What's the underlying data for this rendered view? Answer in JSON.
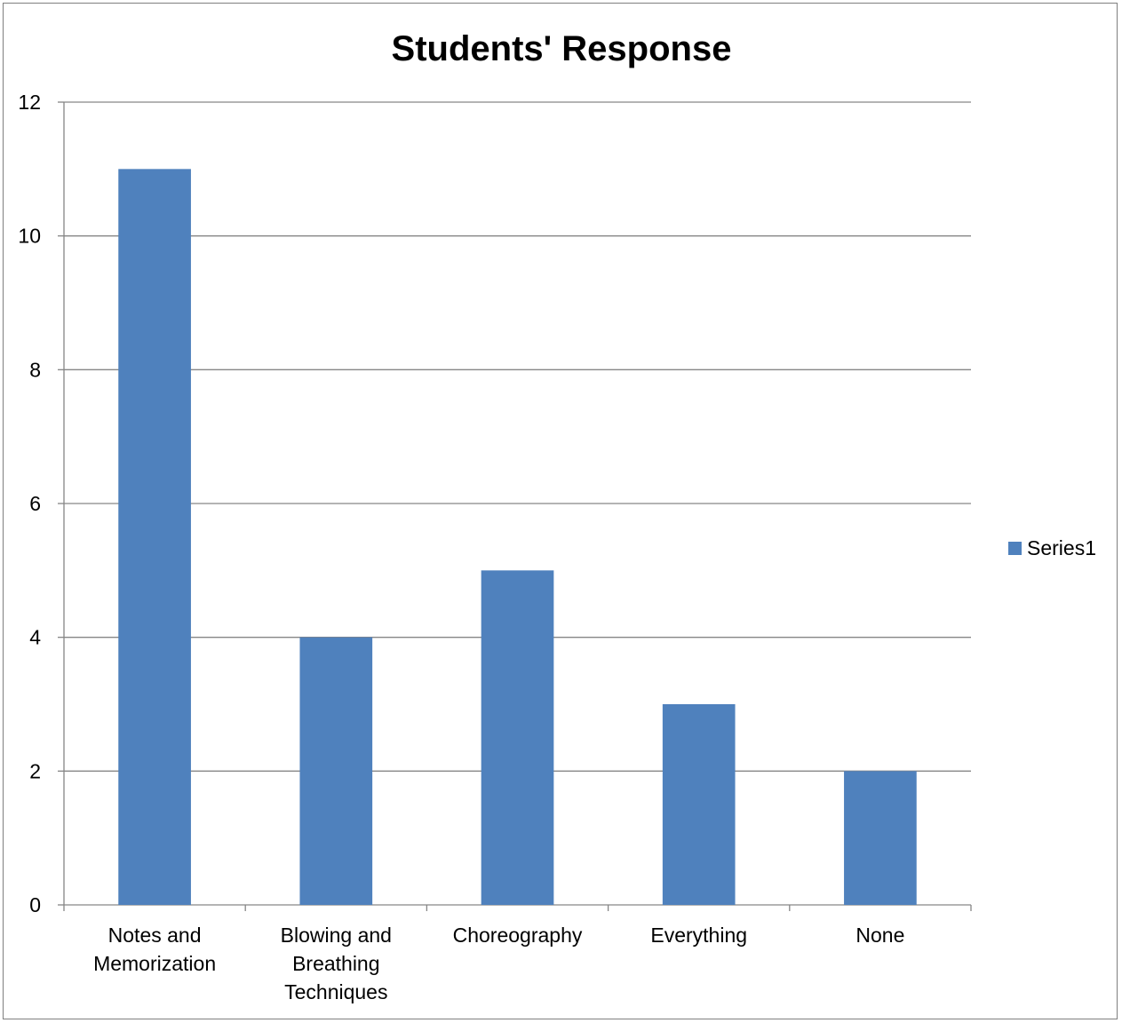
{
  "chart_data": {
    "type": "bar",
    "title": "Students' Response",
    "xlabel": "",
    "ylabel": "",
    "categories": [
      "Notes and Memorization",
      "Blowing and Breathing Techniques",
      "Choreography",
      "Everything",
      "None"
    ],
    "category_label_lines": [
      [
        "Notes and",
        "Memorization"
      ],
      [
        "Blowing and",
        "Breathing",
        "Techniques"
      ],
      [
        "Choreography"
      ],
      [
        "Everything"
      ],
      [
        "None"
      ]
    ],
    "series": [
      {
        "name": "Series1",
        "values": [
          11,
          4,
          5,
          3,
          2
        ],
        "color": "#4f81bd"
      }
    ],
    "ylim": [
      0,
      12
    ],
    "yticks": [
      0,
      2,
      4,
      6,
      8,
      10,
      12
    ],
    "grid": true,
    "gridline_color": "#868686",
    "legend_position": "right"
  }
}
